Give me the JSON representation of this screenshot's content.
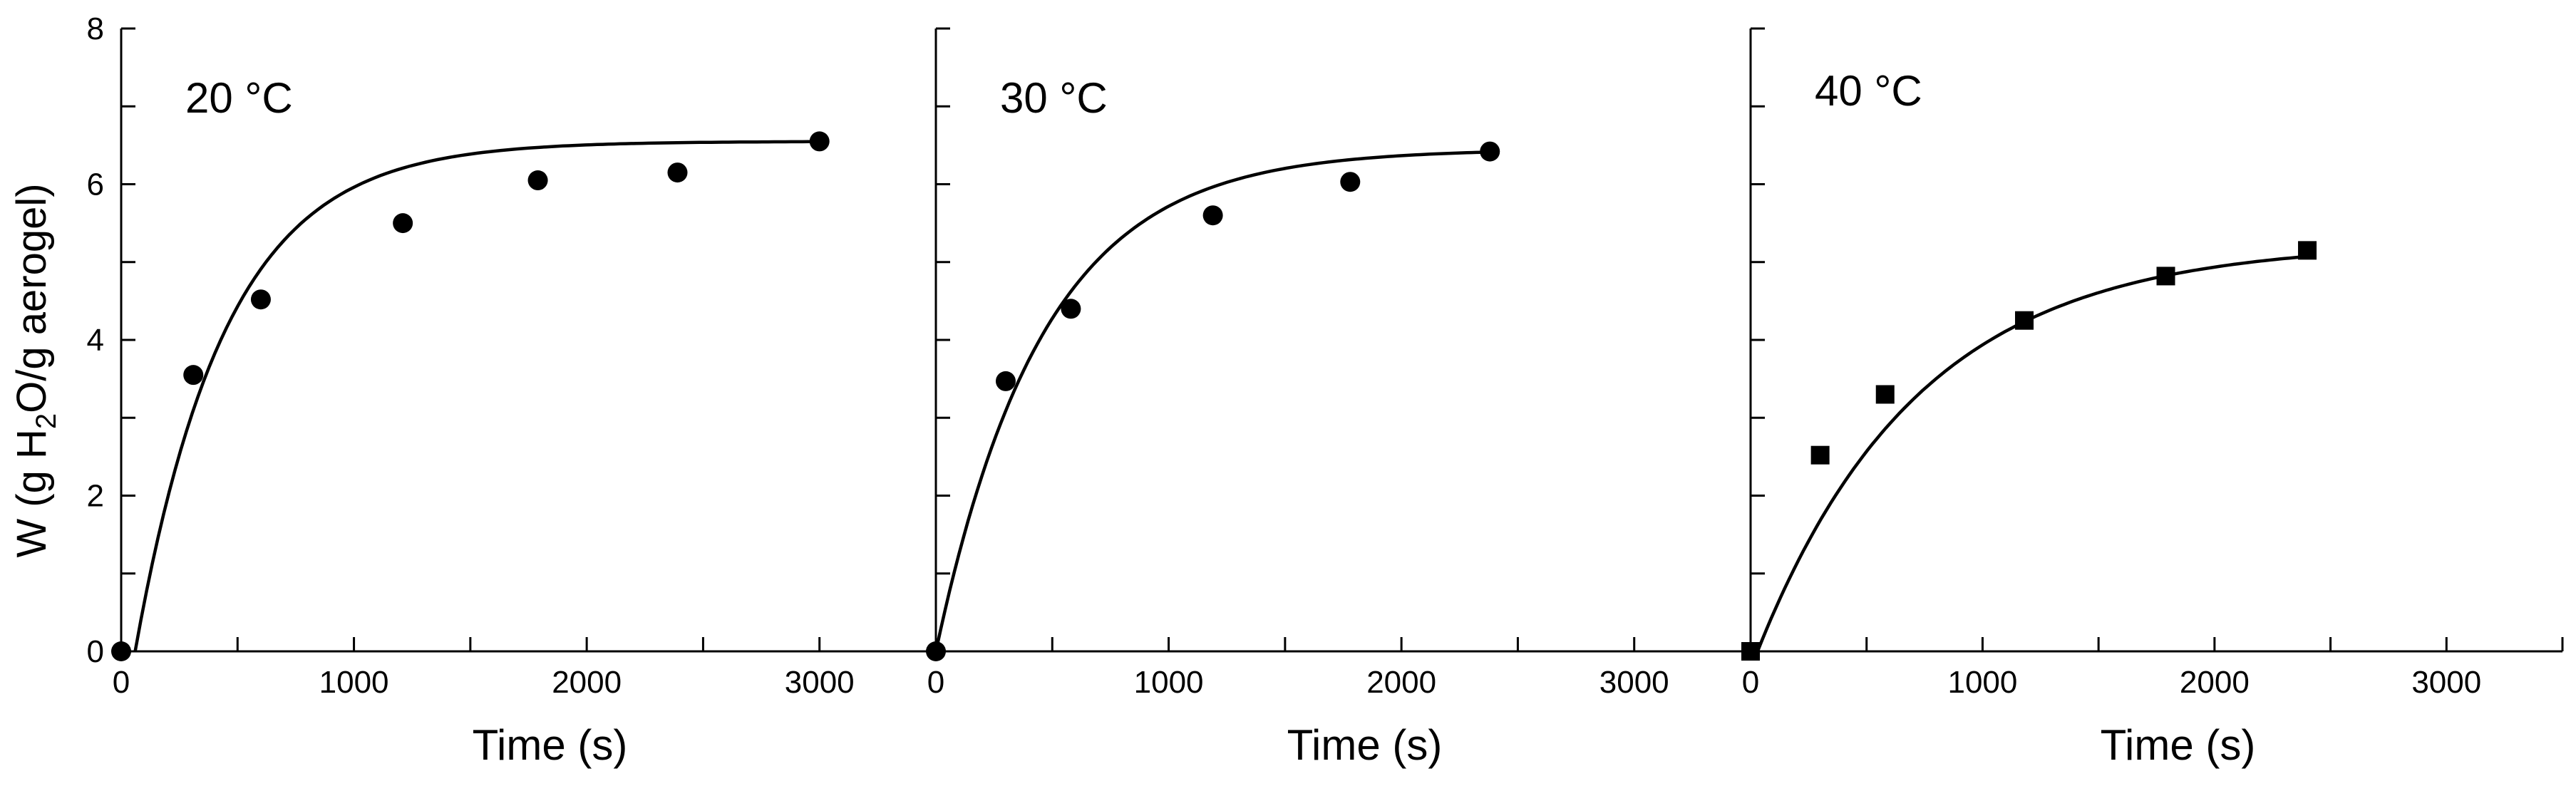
{
  "chart_data": {
    "type": "scatter",
    "ylabel_parts": {
      "prefix": "W (g H",
      "sub": "2",
      "suffix": "O/g aerogel)"
    },
    "panels": [
      {
        "title": "20 °C",
        "xlabel": "Time (s)",
        "xlim": [
          0,
          3500
        ],
        "ylim": [
          0,
          8
        ],
        "xticks": [
          0,
          1000,
          2000,
          3000
        ],
        "yticks": [
          0,
          2,
          4,
          6,
          8
        ],
        "marker": "circle",
        "points": [
          {
            "x": 0,
            "y": 0
          },
          {
            "x": 310,
            "y": 3.55
          },
          {
            "x": 600,
            "y": 4.52
          },
          {
            "x": 1210,
            "y": 5.5
          },
          {
            "x": 1790,
            "y": 6.05
          },
          {
            "x": 2390,
            "y": 6.15
          },
          {
            "x": 3000,
            "y": 6.55
          }
        ],
        "fit": {
          "x_start": 60,
          "x_end": 3000,
          "plateau": 6.55,
          "tau": 390
        }
      },
      {
        "title": "30 °C",
        "xlabel": "Time (s)",
        "xlim": [
          0,
          3500
        ],
        "ylim": [
          0,
          8
        ],
        "xticks": [
          0,
          1000,
          2000,
          3000
        ],
        "yticks": [
          0,
          2,
          4,
          6,
          8
        ],
        "marker": "circle",
        "points": [
          {
            "x": 0,
            "y": 0
          },
          {
            "x": 300,
            "y": 3.47
          },
          {
            "x": 580,
            "y": 4.4
          },
          {
            "x": 1190,
            "y": 5.6
          },
          {
            "x": 1780,
            "y": 6.03
          },
          {
            "x": 2380,
            "y": 6.42
          }
        ],
        "fit": {
          "x_start": 0,
          "x_end": 2380,
          "plateau": 6.45,
          "tau": 460
        }
      },
      {
        "title": "40 °C",
        "xlabel": "Time (s)",
        "xlim": [
          0,
          3500
        ],
        "ylim": [
          0,
          8
        ],
        "xticks": [
          0,
          1000,
          2000,
          3000
        ],
        "yticks": [
          0,
          2,
          4,
          6,
          8
        ],
        "marker": "square",
        "points": [
          {
            "x": 0,
            "y": 0
          },
          {
            "x": 300,
            "y": 2.52
          },
          {
            "x": 580,
            "y": 3.3
          },
          {
            "x": 1180,
            "y": 4.25
          },
          {
            "x": 1790,
            "y": 4.82
          },
          {
            "x": 2400,
            "y": 5.15
          }
        ],
        "fit": {
          "x_start": 30,
          "x_end": 2400,
          "plateau": 5.25,
          "tau": 700
        }
      }
    ]
  }
}
